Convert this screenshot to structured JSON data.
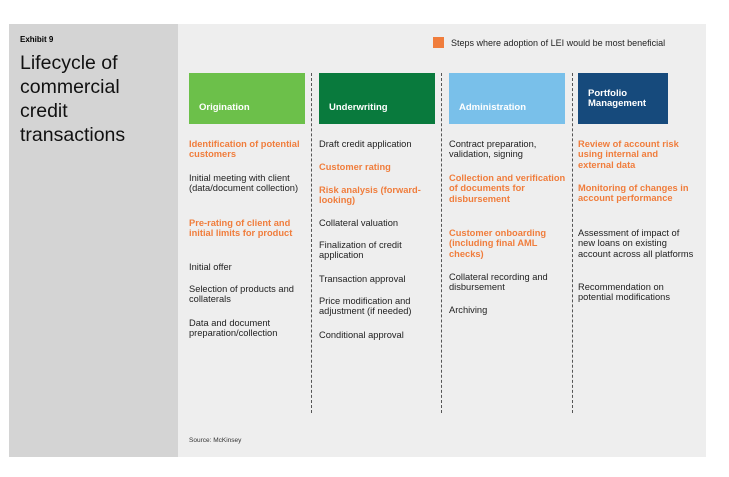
{
  "exhibit": "Exhibit 9",
  "title": "Lifecycle of commercial credit transactions",
  "legend": {
    "label": "Steps where adoption of LEI would be most beneficial",
    "color": "#f07d3c"
  },
  "columns": [
    {
      "header": "Origination",
      "color": "#6cc04a",
      "items": [
        {
          "text": "Identification of potential customers",
          "highlight": true
        },
        {
          "text": "Initial meeting with client (data/document collection)",
          "highlight": false
        },
        {
          "text": "Pre-rating of client and initial limits for product",
          "highlight": true
        },
        {
          "text": "Initial offer",
          "highlight": false
        },
        {
          "text": "Selection of products and collaterals",
          "highlight": false
        },
        {
          "text": "Data and document preparation/collection",
          "highlight": false
        }
      ]
    },
    {
      "header": "Underwriting",
      "color": "#097a3d",
      "items": [
        {
          "text": "Draft credit application",
          "highlight": false
        },
        {
          "text": "Customer rating",
          "highlight": true
        },
        {
          "text": "Risk analysis (forward-looking)",
          "highlight": true
        },
        {
          "text": "Collateral valuation",
          "highlight": false
        },
        {
          "text": "Finalization of credit application",
          "highlight": false
        },
        {
          "text": "Transaction approval",
          "highlight": false
        },
        {
          "text": "Price modification and adjustment (if needed)",
          "highlight": false
        },
        {
          "text": "Conditional approval",
          "highlight": false
        }
      ]
    },
    {
      "header": "Administration",
      "color": "#79c0ea",
      "items": [
        {
          "text": "Contract preparation, validation, signing",
          "highlight": false
        },
        {
          "text": "Collection and verification of documents for disbursement",
          "highlight": true
        },
        {
          "text": "Customer onboarding (including final AML checks)",
          "highlight": true
        },
        {
          "text": "Collateral recording and disbursement",
          "highlight": false
        },
        {
          "text": "Archiving",
          "highlight": false
        }
      ]
    },
    {
      "header": "Portfolio Management",
      "color": "#164a7c",
      "items": [
        {
          "text": "Review of account risk using internal and external data",
          "highlight": true
        },
        {
          "text": "Monitoring of changes in account performance",
          "highlight": true
        },
        {
          "text": "Assessment of impact of new loans on existing account across all platforms",
          "highlight": false
        },
        {
          "text": "Recommendation on potential modifications",
          "highlight": false
        }
      ]
    }
  ],
  "source": "Source: McKinsey"
}
